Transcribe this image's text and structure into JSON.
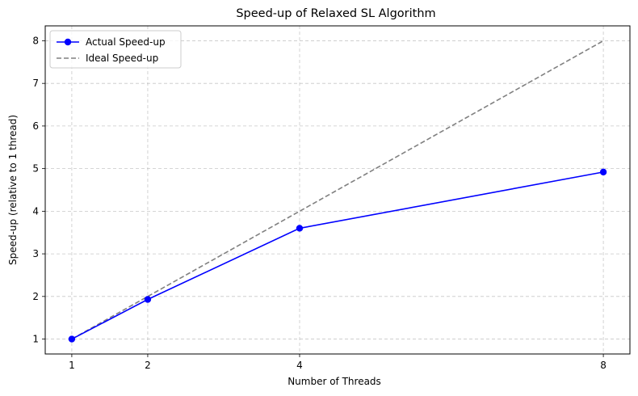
{
  "chart_data": {
    "type": "line",
    "title": "Speed-up of Relaxed SL Algorithm",
    "xlabel": "Number of Threads",
    "ylabel": "Speed-up (relative to 1 thread)",
    "x": [
      1,
      2,
      4,
      8
    ],
    "xlim": [
      0.65,
      8.35
    ],
    "ylim": [
      0.65,
      8.35
    ],
    "xticks": [
      1,
      2,
      4,
      8
    ],
    "yticks": [
      1,
      2,
      3,
      4,
      5,
      6,
      7,
      8
    ],
    "grid": true,
    "legend_position": "top-left",
    "series": [
      {
        "name": "Actual Speed-up",
        "values": [
          1.0,
          1.93,
          3.6,
          4.92
        ],
        "color": "#0000ff",
        "style": "solid",
        "marker": "circle"
      },
      {
        "name": "Ideal Speed-up",
        "values": [
          1,
          2,
          4,
          8
        ],
        "color": "#808080",
        "style": "dashed",
        "marker": "none"
      }
    ]
  }
}
